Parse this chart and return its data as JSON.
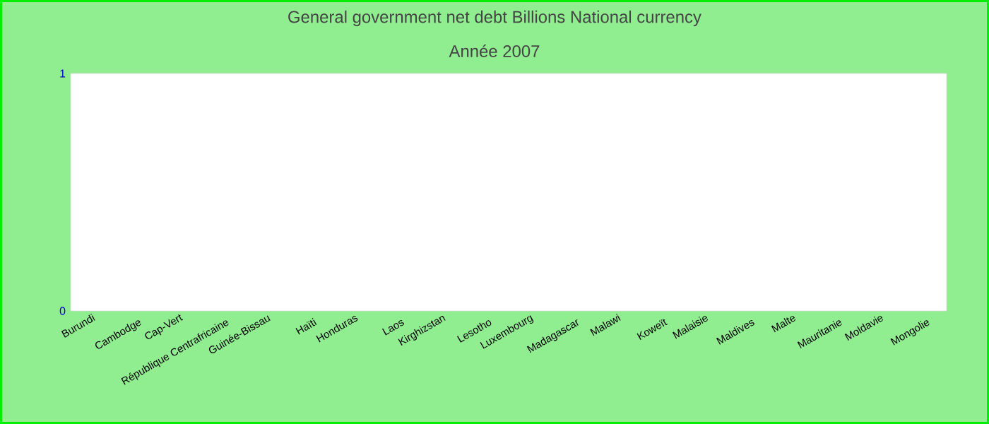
{
  "chart_data": {
    "type": "bar",
    "title": "General government net debt Billions National currency",
    "subtitle": "Année 2007",
    "categories": [
      "Burundi",
      "Cambodge",
      "Cap-Vert",
      "République Centrafricaine",
      "Guinée-Bissau",
      "Haïti",
      "Honduras",
      "Laos",
      "Kirghizstan",
      "Lesotho",
      "Luxembourg",
      "Madagascar",
      "Malawi",
      "Koweït",
      "Malaisie",
      "Maldives",
      "Malte",
      "Mauritanie",
      "Moldavie",
      "Mongolie"
    ],
    "values": [
      0,
      0,
      0,
      0,
      0,
      0,
      0,
      0,
      0,
      0,
      0,
      0,
      0,
      0,
      0,
      0,
      0,
      0,
      0,
      0
    ],
    "ylim": [
      0,
      1
    ],
    "yticks": [
      0,
      1
    ]
  }
}
